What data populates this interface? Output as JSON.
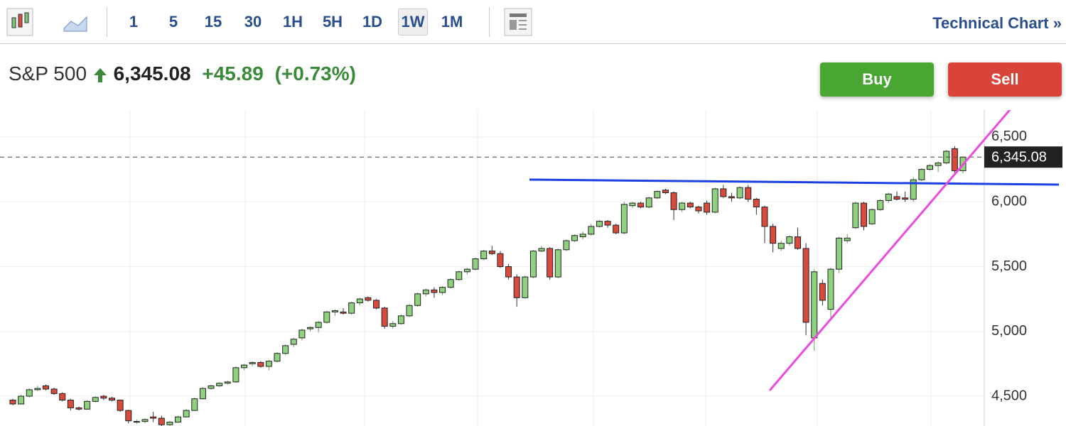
{
  "toolbar": {
    "intervals": [
      "1",
      "5",
      "15",
      "30",
      "1H",
      "5H",
      "1D",
      "1W",
      "1M"
    ],
    "selected": "1W",
    "link": "Technical Chart",
    "link_icon": "»"
  },
  "header": {
    "name": "S&P 500",
    "change": "+45.89",
    "change_pct": "(+0.73%)"
  },
  "buttons": {
    "buy": "Buy",
    "sell": "Sell"
  },
  "chart_data": {
    "type": "candlestick",
    "up_color": "#8fd17f",
    "down_color": "#d94a3d",
    "last_price": {
      "value": 6345.08,
      "label": "6,345.08"
    },
    "ylim": [
      4270,
      6708
    ],
    "yticks": [
      {
        "value": 4500,
        "label": "4,500"
      },
      {
        "value": 5000,
        "label": "5,000"
      },
      {
        "value": 5500,
        "label": "5,500"
      },
      {
        "value": 6000,
        "label": "6,000"
      },
      {
        "value": 6500,
        "label": "6,500"
      }
    ],
    "grid": true,
    "ohlc": [
      [
        4470,
        4480,
        4430,
        4440
      ],
      [
        4440,
        4510,
        4435,
        4500
      ],
      [
        4500,
        4560,
        4490,
        4550
      ],
      [
        4550,
        4580,
        4540,
        4560
      ],
      [
        4580,
        4590,
        4545,
        4555
      ],
      [
        4555,
        4565,
        4510,
        4520
      ],
      [
        4520,
        4530,
        4460,
        4470
      ],
      [
        4470,
        4480,
        4390,
        4410
      ],
      [
        4410,
        4420,
        4390,
        4400
      ],
      [
        4400,
        4470,
        4395,
        4460
      ],
      [
        4460,
        4500,
        4450,
        4490
      ],
      [
        4500,
        4510,
        4470,
        4485
      ],
      [
        4485,
        4495,
        4460,
        4470
      ],
      [
        4470,
        4475,
        4380,
        4390
      ],
      [
        4390,
        4395,
        4290,
        4310
      ],
      [
        4300,
        4320,
        4285,
        4305
      ],
      [
        4305,
        4330,
        4290,
        4320
      ],
      [
        4340,
        4380,
        4300,
        4330
      ],
      [
        4330,
        4350,
        4270,
        4280
      ],
      [
        4280,
        4310,
        4260,
        4300
      ],
      [
        4300,
        4350,
        4295,
        4340
      ],
      [
        4340,
        4400,
        4335,
        4390
      ],
      [
        4390,
        4490,
        4385,
        4480
      ],
      [
        4480,
        4570,
        4475,
        4560
      ],
      [
        4560,
        4590,
        4550,
        4580
      ],
      [
        4580,
        4610,
        4570,
        4600
      ],
      [
        4600,
        4620,
        4590,
        4610
      ],
      [
        4610,
        4730,
        4605,
        4720
      ],
      [
        4720,
        4750,
        4700,
        4740
      ],
      [
        4750,
        4770,
        4730,
        4760
      ],
      [
        4760,
        4770,
        4720,
        4730
      ],
      [
        4730,
        4780,
        4700,
        4770
      ],
      [
        4770,
        4840,
        4760,
        4830
      ],
      [
        4830,
        4900,
        4820,
        4890
      ],
      [
        4900,
        4950,
        4880,
        4940
      ],
      [
        4950,
        5020,
        4930,
        5010
      ],
      [
        5020,
        5040,
        5000,
        5030
      ],
      [
        5030,
        5080,
        4990,
        5070
      ],
      [
        5070,
        5160,
        5060,
        5150
      ],
      [
        5150,
        5170,
        5120,
        5160
      ],
      [
        5150,
        5180,
        5130,
        5140
      ],
      [
        5140,
        5230,
        5130,
        5220
      ],
      [
        5220,
        5260,
        5200,
        5250
      ],
      [
        5260,
        5270,
        5230,
        5240
      ],
      [
        5240,
        5250,
        5170,
        5180
      ],
      [
        5180,
        5190,
        5020,
        5040
      ],
      [
        5040,
        5080,
        5020,
        5060
      ],
      [
        5060,
        5130,
        5050,
        5120
      ],
      [
        5120,
        5210,
        5110,
        5200
      ],
      [
        5200,
        5300,
        5190,
        5290
      ],
      [
        5290,
        5330,
        5270,
        5320
      ],
      [
        5320,
        5340,
        5260,
        5300
      ],
      [
        5300,
        5350,
        5280,
        5340
      ],
      [
        5340,
        5410,
        5330,
        5400
      ],
      [
        5400,
        5470,
        5390,
        5460
      ],
      [
        5460,
        5490,
        5440,
        5480
      ],
      [
        5480,
        5570,
        5470,
        5560
      ],
      [
        5560,
        5630,
        5550,
        5620
      ],
      [
        5620,
        5660,
        5590,
        5600
      ],
      [
        5600,
        5620,
        5490,
        5500
      ],
      [
        5500,
        5520,
        5400,
        5420
      ],
      [
        5420,
        5440,
        5190,
        5260
      ],
      [
        5260,
        5430,
        5250,
        5420
      ],
      [
        5420,
        5630,
        5410,
        5620
      ],
      [
        5620,
        5660,
        5610,
        5640
      ],
      [
        5640,
        5650,
        5400,
        5420
      ],
      [
        5420,
        5640,
        5410,
        5630
      ],
      [
        5630,
        5710,
        5620,
        5700
      ],
      [
        5700,
        5750,
        5690,
        5740
      ],
      [
        5730,
        5770,
        5710,
        5750
      ],
      [
        5750,
        5830,
        5740,
        5810
      ],
      [
        5810,
        5860,
        5800,
        5850
      ],
      [
        5850,
        5860,
        5800,
        5820
      ],
      [
        5820,
        5830,
        5750,
        5760
      ],
      [
        5760,
        6000,
        5750,
        5980
      ],
      [
        5970,
        6000,
        5950,
        5990
      ],
      [
        5990,
        6000,
        5950,
        5960
      ],
      [
        5960,
        6040,
        5950,
        6030
      ],
      [
        6030,
        6090,
        6020,
        6080
      ],
      [
        6090,
        6100,
        6060,
        6070
      ],
      [
        6070,
        6080,
        5860,
        5940
      ],
      [
        5940,
        6000,
        5920,
        5990
      ],
      [
        5990,
        6000,
        5950,
        5960
      ],
      [
        5960,
        5970,
        5910,
        5930
      ],
      [
        5990,
        6010,
        5900,
        5920
      ],
      [
        5920,
        6110,
        5910,
        6100
      ],
      [
        6100,
        6130,
        6030,
        6040
      ],
      [
        6040,
        6070,
        6000,
        6030
      ],
      [
        6030,
        6120,
        6020,
        6110
      ],
      [
        6110,
        6130,
        6000,
        6020
      ],
      [
        6020,
        6030,
        5900,
        5960
      ],
      [
        5960,
        5970,
        5680,
        5810
      ],
      [
        5810,
        5830,
        5610,
        5680
      ],
      [
        5640,
        5700,
        5620,
        5680
      ],
      [
        5680,
        5740,
        5660,
        5730
      ],
      [
        5730,
        5800,
        5630,
        5640
      ],
      [
        5640,
        5680,
        4970,
        5070
      ],
      [
        4950,
        5480,
        4850,
        5460
      ],
      [
        5370,
        5400,
        5200,
        5240
      ],
      [
        5170,
        5490,
        5100,
        5480
      ],
      [
        5480,
        5730,
        5450,
        5720
      ],
      [
        5700,
        5750,
        5680,
        5720
      ],
      [
        5800,
        6000,
        5790,
        5990
      ],
      [
        5990,
        6000,
        5780,
        5810
      ],
      [
        5830,
        5950,
        5820,
        5940
      ],
      [
        5940,
        6020,
        5930,
        6010
      ],
      [
        6010,
        6070,
        5990,
        6060
      ],
      [
        6040,
        6080,
        6010,
        6020
      ],
      [
        6030,
        6080,
        6000,
        6020
      ],
      [
        6020,
        6190,
        6000,
        6170
      ],
      [
        6170,
        6260,
        6160,
        6250
      ],
      [
        6250,
        6290,
        6240,
        6280
      ],
      [
        6280,
        6310,
        6230,
        6300
      ],
      [
        6300,
        6400,
        6290,
        6390
      ],
      [
        6410,
        6430,
        6210,
        6240
      ],
      [
        6240,
        6350,
        6220,
        6345
      ]
    ]
  }
}
